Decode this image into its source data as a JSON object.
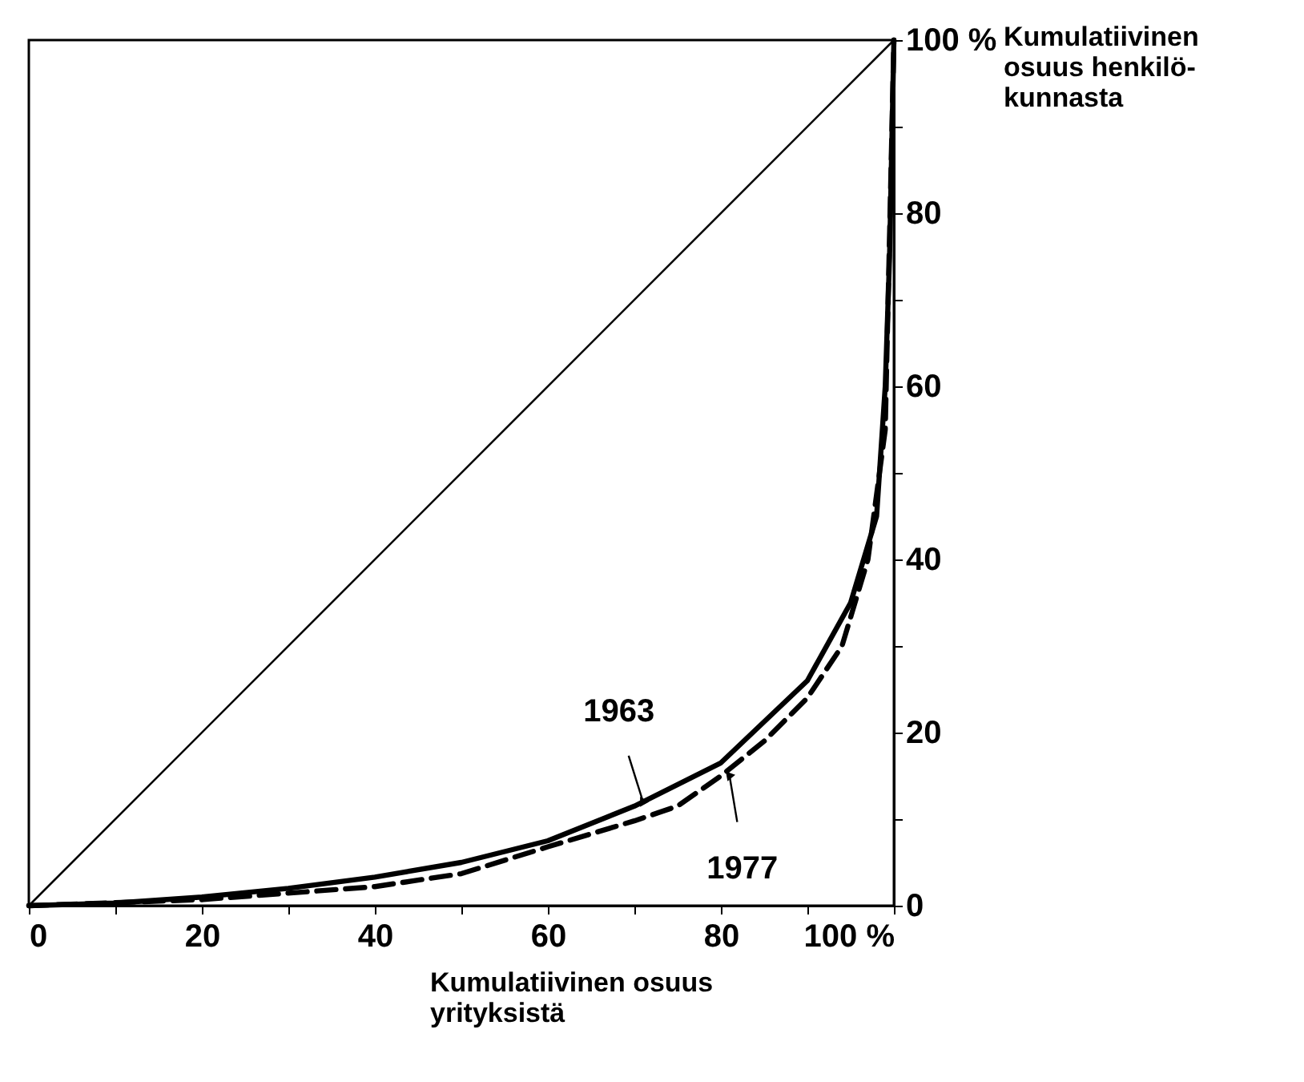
{
  "chart_data": {
    "type": "line",
    "xlabel": "Kumulatiivinen osuus\nyrityksistä",
    "ylabel": "Kumulatiivinen\nosuus henkilö-\nkunnasta",
    "xlim": [
      0,
      100
    ],
    "ylim": [
      0,
      100
    ],
    "xticks": [
      0,
      {
        "value": 10,
        "label": null
      },
      20,
      {
        "value": 30,
        "label": null
      },
      40,
      {
        "value": 50,
        "label": null
      },
      60,
      {
        "value": 70,
        "label": null
      },
      80,
      {
        "value": 90,
        "label": null
      },
      {
        "value": 100,
        "label": "100 %"
      }
    ],
    "yticks": [
      0,
      {
        "value": 10,
        "label": null
      },
      20,
      {
        "value": 30,
        "label": null
      },
      40,
      {
        "value": 50,
        "label": null
      },
      60,
      {
        "value": 70,
        "label": null
      },
      80,
      {
        "value": 90,
        "label": null
      },
      {
        "value": 100,
        "label": "100 %"
      }
    ],
    "grid": false,
    "marker": "none",
    "series": [
      {
        "color": "#000000",
        "line_style": "solid",
        "x": [
          0,
          100
        ],
        "values": [
          0,
          100
        ]
      },
      {
        "color": "#000000",
        "line_style": "solid",
        "x": [
          0,
          10,
          20,
          30,
          40,
          50,
          60,
          70,
          80,
          90,
          95,
          98,
          99,
          99.5,
          100
        ],
        "values": [
          0,
          0.3,
          1,
          2,
          3.3,
          5,
          7.5,
          11.5,
          16.5,
          26,
          35,
          45,
          60,
          75,
          100
        ]
      },
      {
        "color": "#000000",
        "line_style": "dashed",
        "x": [
          0,
          20,
          40,
          50,
          60,
          70,
          75,
          80,
          85,
          90,
          94,
          97,
          99,
          100
        ],
        "values": [
          0,
          0.7,
          2.2,
          3.7,
          6.8,
          9.8,
          11.5,
          15,
          19,
          24,
          30,
          40,
          55,
          100
        ]
      }
    ],
    "annotations": [
      {
        "text": "1963",
        "x": 71,
        "y": 12
      },
      {
        "text": "1977",
        "x": 81,
        "y": 15
      }
    ]
  }
}
